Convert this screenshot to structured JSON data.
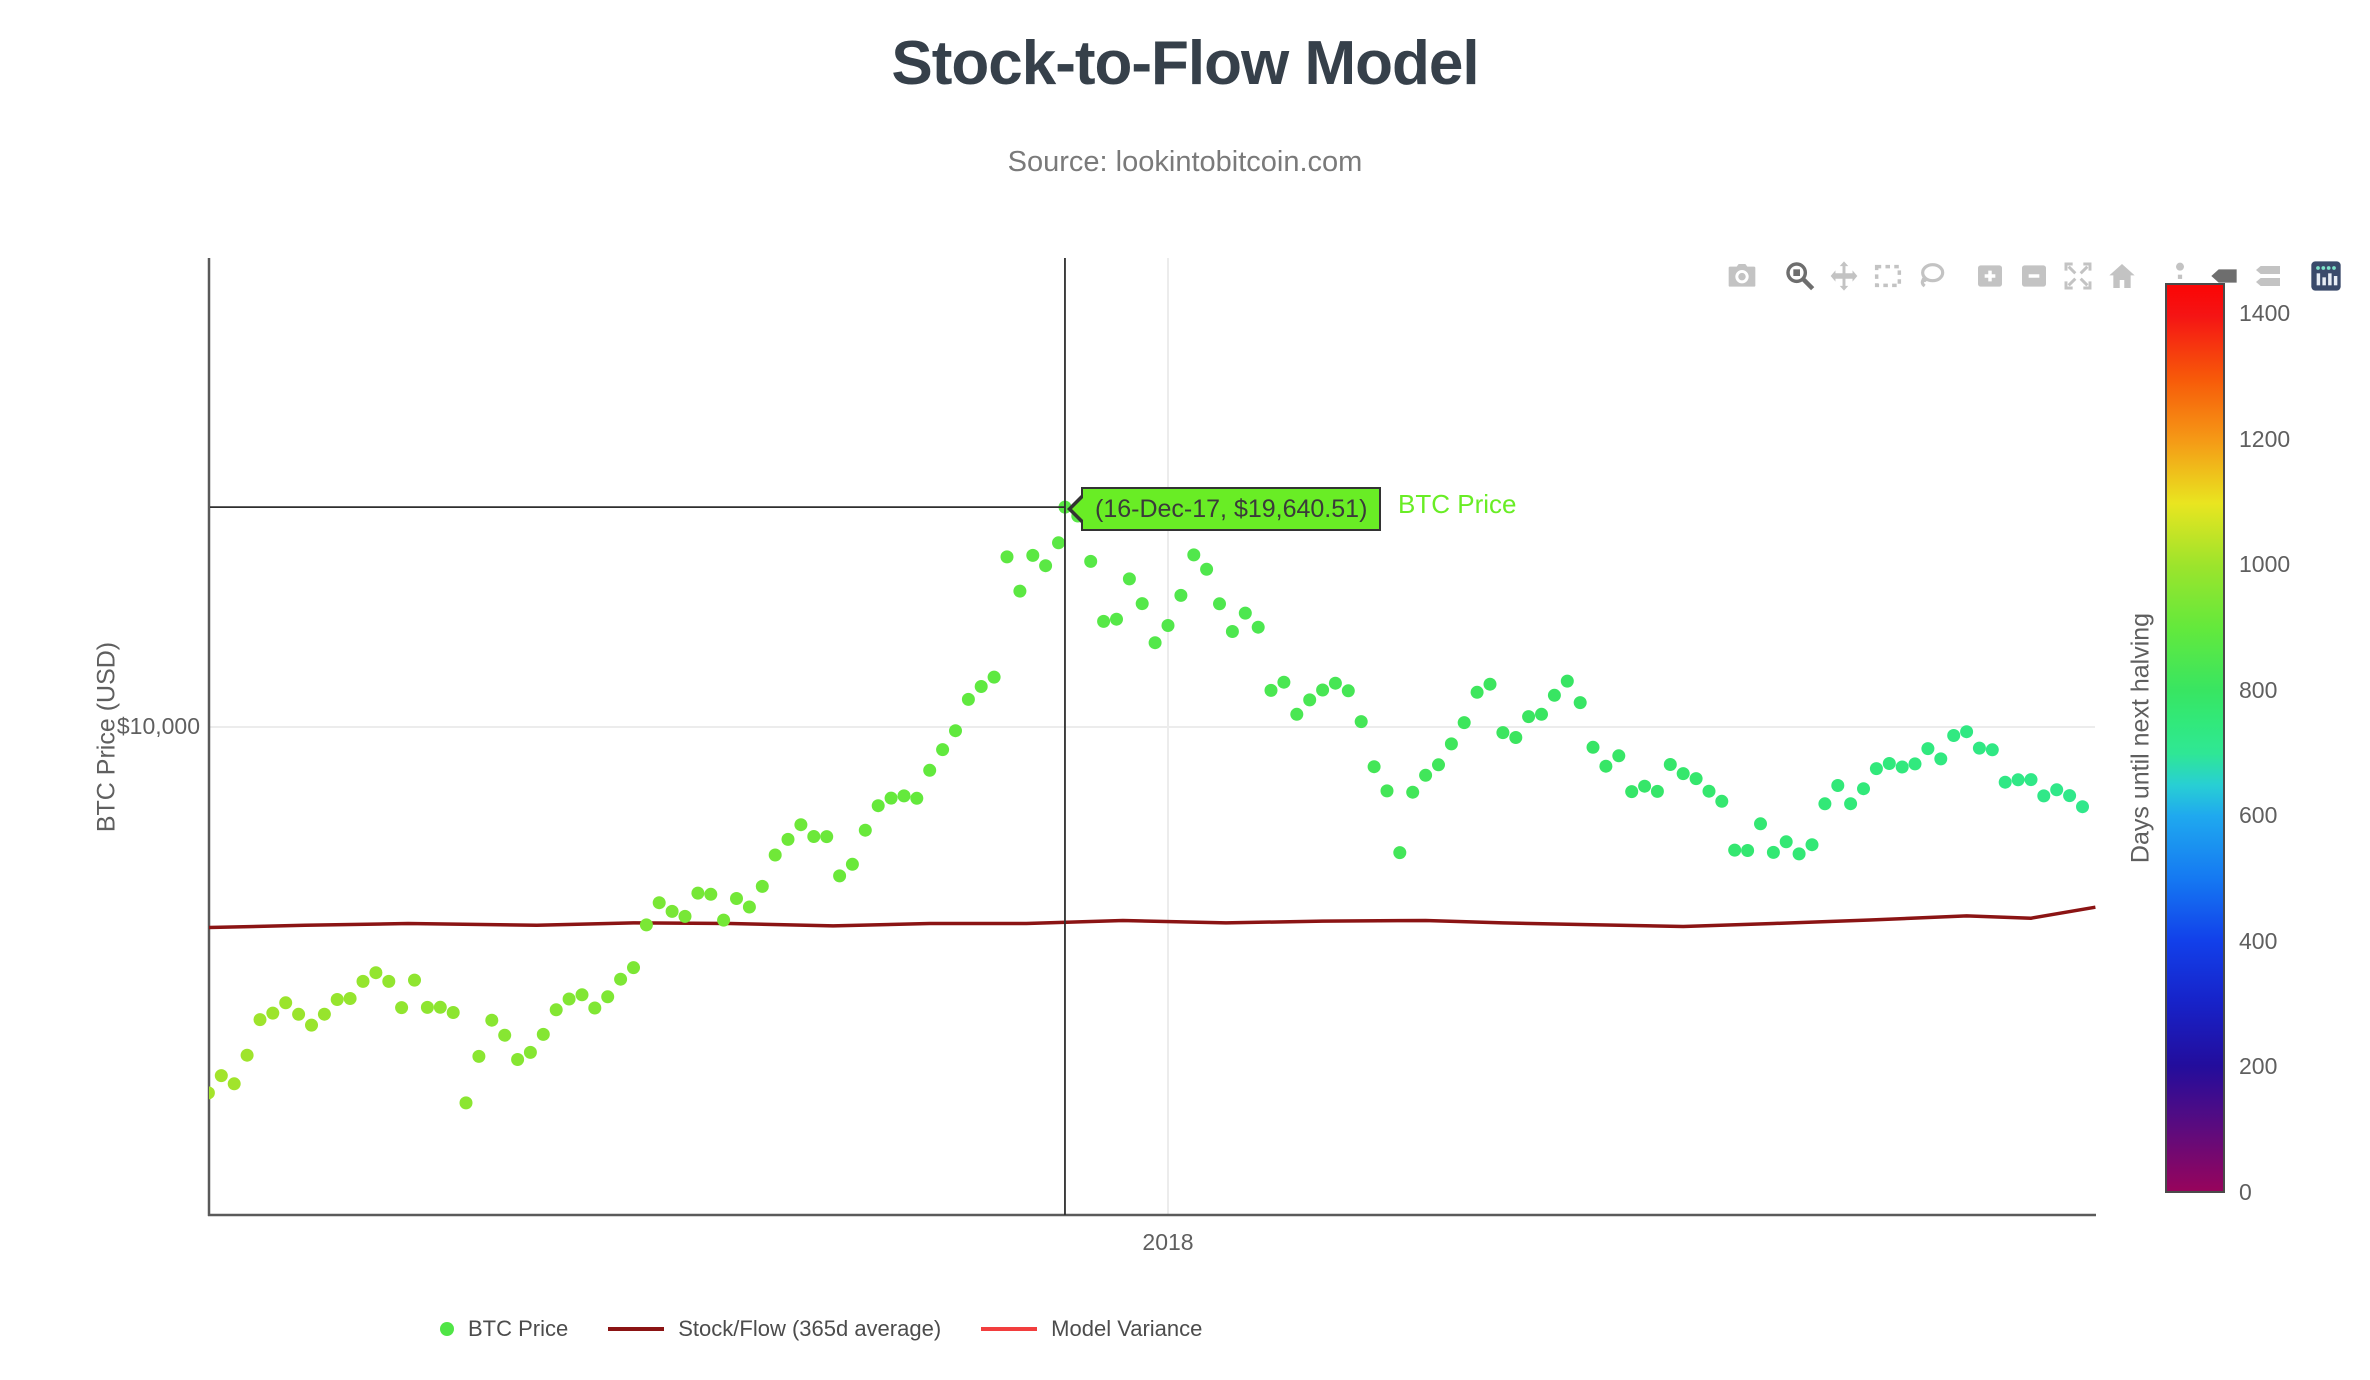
{
  "page": {
    "title": "Stock-to-Flow Model",
    "subtitle": "Source: lookintobitcoin.com"
  },
  "modebar": {
    "icons": [
      {
        "name": "camera",
        "active": false
      },
      {
        "name": "zoom",
        "active": true
      },
      {
        "name": "pan",
        "active": false
      },
      {
        "name": "box-select",
        "active": false
      },
      {
        "name": "lasso-select",
        "active": false
      },
      {
        "name": "zoom-in",
        "active": false
      },
      {
        "name": "zoom-out",
        "active": false
      },
      {
        "name": "autoscale",
        "active": false
      },
      {
        "name": "reset-axes",
        "active": false
      },
      {
        "name": "spikelines",
        "active": false
      },
      {
        "name": "hover-closest",
        "active": true
      },
      {
        "name": "hover-compare",
        "active": false
      },
      {
        "name": "plotly-logo",
        "active": false
      }
    ]
  },
  "tooltip": {
    "label": "(16-Dec-17, $19,640.51)",
    "trace": "BTC Price",
    "date": "2017-12-16",
    "value": 19640.51,
    "bg": "#69ED25"
  },
  "legend": {
    "items": [
      {
        "label": "BTC Price",
        "marker": "dot",
        "color": "#50E546"
      },
      {
        "label": "Stock/Flow (365d average)",
        "marker": "line",
        "color": "#8B1414"
      },
      {
        "label": "Model Variance",
        "marker": "line",
        "color": "#F23E3E"
      }
    ]
  },
  "chart_data": {
    "type": "scatter",
    "title": "Stock-to-Flow Model",
    "x_axis": {
      "type": "date",
      "range": [
        "2017-08-04",
        "2018-05-25"
      ],
      "ticks": [
        {
          "label": "2018",
          "date": "2018-01-01"
        }
      ],
      "grid": true
    },
    "y_axis": {
      "title": "BTC Price (USD)",
      "type": "log",
      "range": [
        2237,
        42200
      ],
      "ticks": [
        {
          "label": "$10,000",
          "value": 10000
        }
      ],
      "grid": true
    },
    "colorbar": {
      "title": "Days until next halving",
      "min": 0,
      "max": 1450,
      "ticks": [
        0,
        200,
        400,
        600,
        800,
        1000,
        1200,
        1400
      ],
      "halving_date": "2020-05-11",
      "stops": [
        [
          0,
          "#97045c"
        ],
        [
          100,
          "#5c0b7e"
        ],
        [
          200,
          "#230d9c"
        ],
        [
          300,
          "#1722c8"
        ],
        [
          400,
          "#1240ea"
        ],
        [
          500,
          "#1579f2"
        ],
        [
          600,
          "#1fa9ef"
        ],
        [
          650,
          "#28cfd4"
        ],
        [
          700,
          "#2fe795"
        ],
        [
          750,
          "#31e97b"
        ],
        [
          800,
          "#38e562"
        ],
        [
          900,
          "#63e93c"
        ],
        [
          1000,
          "#9ce42c"
        ],
        [
          1100,
          "#e9e520"
        ],
        [
          1200,
          "#f59a16"
        ],
        [
          1300,
          "#f75909"
        ],
        [
          1400,
          "#f51414"
        ],
        [
          1450,
          "#fb0505"
        ]
      ]
    },
    "series": [
      {
        "name": "BTC Price",
        "mode": "markers",
        "points": [
          [
            "2017-08-05",
            3252
          ],
          [
            "2017-08-07",
            3429
          ],
          [
            "2017-08-09",
            3344
          ],
          [
            "2017-08-11",
            3651
          ],
          [
            "2017-08-13",
            4073
          ],
          [
            "2017-08-15",
            4155
          ],
          [
            "2017-08-17",
            4288
          ],
          [
            "2017-08-19",
            4139
          ],
          [
            "2017-08-21",
            4004
          ],
          [
            "2017-08-23",
            4141
          ],
          [
            "2017-08-25",
            4332
          ],
          [
            "2017-08-27",
            4345
          ],
          [
            "2017-08-29",
            4579
          ],
          [
            "2017-08-31",
            4703
          ],
          [
            "2017-09-02",
            4579
          ],
          [
            "2017-09-04",
            4226
          ],
          [
            "2017-09-06",
            4597
          ],
          [
            "2017-09-08",
            4228
          ],
          [
            "2017-09-10",
            4229
          ],
          [
            "2017-09-12",
            4162
          ],
          [
            "2017-09-14",
            3154
          ],
          [
            "2017-09-16",
            3637
          ],
          [
            "2017-09-18",
            4065
          ],
          [
            "2017-09-20",
            3882
          ],
          [
            "2017-09-22",
            3603
          ],
          [
            "2017-09-24",
            3682
          ],
          [
            "2017-09-26",
            3892
          ],
          [
            "2017-09-28",
            4197
          ],
          [
            "2017-09-30",
            4338
          ],
          [
            "2017-10-02",
            4395
          ],
          [
            "2017-10-04",
            4220
          ],
          [
            "2017-10-06",
            4368
          ],
          [
            "2017-10-08",
            4611
          ],
          [
            "2017-10-10",
            4778
          ],
          [
            "2017-10-12",
            5447
          ],
          [
            "2017-10-14",
            5831
          ],
          [
            "2017-10-16",
            5678
          ],
          [
            "2017-10-18",
            5590
          ],
          [
            "2017-10-20",
            6006
          ],
          [
            "2017-10-22",
            5983
          ],
          [
            "2017-10-24",
            5527
          ],
          [
            "2017-10-26",
            5906
          ],
          [
            "2017-10-28",
            5754
          ],
          [
            "2017-10-30",
            6130
          ],
          [
            "2017-11-01",
            6750
          ],
          [
            "2017-11-03",
            7082
          ],
          [
            "2017-11-05",
            7408
          ],
          [
            "2017-11-07",
            7144
          ],
          [
            "2017-11-09",
            7143
          ],
          [
            "2017-11-11",
            6330
          ],
          [
            "2017-11-13",
            6560
          ],
          [
            "2017-11-15",
            7284
          ],
          [
            "2017-11-17",
            7853
          ],
          [
            "2017-11-19",
            8038
          ],
          [
            "2017-11-21",
            8094
          ],
          [
            "2017-11-23",
            8033
          ],
          [
            "2017-11-25",
            8754
          ],
          [
            "2017-11-27",
            9330
          ],
          [
            "2017-11-29",
            9888
          ],
          [
            "2017-12-01",
            10883
          ],
          [
            "2017-12-03",
            11323
          ],
          [
            "2017-12-05",
            11657
          ],
          [
            "2017-12-07",
            16858
          ],
          [
            "2017-12-09",
            15178
          ],
          [
            "2017-12-11",
            16936
          ],
          [
            "2017-12-13",
            16408
          ],
          [
            "2017-12-15",
            17604
          ],
          [
            "2017-12-16",
            19640.51
          ],
          [
            "2017-12-18",
            19114
          ],
          [
            "2017-12-20",
            16624
          ],
          [
            "2017-12-22",
            13831
          ],
          [
            "2017-12-24",
            13925
          ],
          [
            "2017-12-26",
            15757
          ],
          [
            "2017-12-28",
            14606
          ],
          [
            "2017-12-30",
            12952
          ],
          [
            "2018-01-01",
            13657
          ],
          [
            "2018-01-03",
            14978
          ],
          [
            "2018-01-05",
            16962
          ],
          [
            "2018-01-07",
            16228
          ],
          [
            "2018-01-09",
            14595
          ],
          [
            "2018-01-11",
            13405
          ],
          [
            "2018-01-13",
            14188
          ],
          [
            "2018-01-15",
            13585
          ],
          [
            "2018-01-17",
            11188
          ],
          [
            "2018-01-19",
            11474
          ],
          [
            "2018-01-21",
            10397
          ],
          [
            "2018-01-23",
            10868
          ],
          [
            "2018-01-25",
            11203
          ],
          [
            "2018-01-27",
            11440
          ],
          [
            "2018-01-29",
            11175
          ],
          [
            "2018-01-31",
            10166
          ],
          [
            "2018-02-02",
            8852
          ],
          [
            "2018-02-04",
            8218
          ],
          [
            "2018-02-06",
            6800
          ],
          [
            "2018-02-08",
            8186
          ],
          [
            "2018-02-10",
            8621
          ],
          [
            "2018-02-12",
            8903
          ],
          [
            "2018-02-14",
            9494
          ],
          [
            "2018-02-16",
            10135
          ],
          [
            "2018-02-18",
            11123
          ],
          [
            "2018-02-20",
            11403
          ],
          [
            "2018-02-22",
            9830
          ],
          [
            "2018-02-24",
            9682
          ],
          [
            "2018-02-26",
            10326
          ],
          [
            "2018-02-28",
            10397
          ],
          [
            "2018-03-02",
            11021
          ],
          [
            "2018-03-04",
            11513
          ],
          [
            "2018-03-06",
            10779
          ],
          [
            "2018-03-08",
            9395
          ],
          [
            "2018-03-10",
            8866
          ],
          [
            "2018-03-12",
            9153
          ],
          [
            "2018-03-14",
            8201
          ],
          [
            "2018-03-16",
            8338
          ],
          [
            "2018-03-18",
            8207
          ],
          [
            "2018-03-20",
            8913
          ],
          [
            "2018-03-22",
            8668
          ],
          [
            "2018-03-24",
            8535
          ],
          [
            "2018-03-26",
            8210
          ],
          [
            "2018-03-28",
            7960
          ],
          [
            "2018-03-30",
            6853
          ],
          [
            "2018-04-01",
            6845
          ],
          [
            "2018-04-03",
            7429
          ],
          [
            "2018-04-05",
            6805
          ],
          [
            "2018-04-07",
            7030
          ],
          [
            "2018-04-09",
            6773
          ],
          [
            "2018-04-11",
            6968
          ],
          [
            "2018-04-13",
            7899
          ],
          [
            "2018-04-15",
            8357
          ],
          [
            "2018-04-17",
            7902
          ],
          [
            "2018-04-19",
            8274
          ],
          [
            "2018-04-21",
            8802
          ],
          [
            "2018-04-23",
            8940
          ],
          [
            "2018-04-25",
            8845
          ],
          [
            "2018-04-27",
            8930
          ],
          [
            "2018-04-29",
            9358
          ],
          [
            "2018-05-01",
            9067
          ],
          [
            "2018-05-03",
            9743
          ],
          [
            "2018-05-05",
            9858
          ],
          [
            "2018-05-07",
            9373
          ],
          [
            "2018-05-09",
            9325
          ],
          [
            "2018-05-11",
            8441
          ],
          [
            "2018-05-13",
            8504
          ],
          [
            "2018-05-15",
            8510
          ],
          [
            "2018-05-17",
            8094
          ],
          [
            "2018-05-19",
            8246
          ],
          [
            "2018-05-21",
            8100
          ],
          [
            "2018-05-23",
            7830
          ]
        ]
      },
      {
        "name": "Stock/Flow (365d average)",
        "mode": "line",
        "color": "#8B1414",
        "points": [
          [
            "2017-08-04",
            5400
          ],
          [
            "2017-08-20",
            5440
          ],
          [
            "2017-09-05",
            5470
          ],
          [
            "2017-09-25",
            5440
          ],
          [
            "2017-10-10",
            5480
          ],
          [
            "2017-10-25",
            5470
          ],
          [
            "2017-11-10",
            5430
          ],
          [
            "2017-11-25",
            5470
          ],
          [
            "2017-12-10",
            5470
          ],
          [
            "2017-12-25",
            5520
          ],
          [
            "2018-01-10",
            5480
          ],
          [
            "2018-01-25",
            5510
          ],
          [
            "2018-02-10",
            5520
          ],
          [
            "2018-02-22",
            5480
          ],
          [
            "2018-03-08",
            5450
          ],
          [
            "2018-03-22",
            5420
          ],
          [
            "2018-04-05",
            5470
          ],
          [
            "2018-04-20",
            5530
          ],
          [
            "2018-05-05",
            5600
          ],
          [
            "2018-05-15",
            5560
          ],
          [
            "2018-05-25",
            5750
          ]
        ]
      },
      {
        "name": "Model Variance",
        "mode": "line",
        "color": "#F23E3E",
        "points": []
      }
    ]
  }
}
